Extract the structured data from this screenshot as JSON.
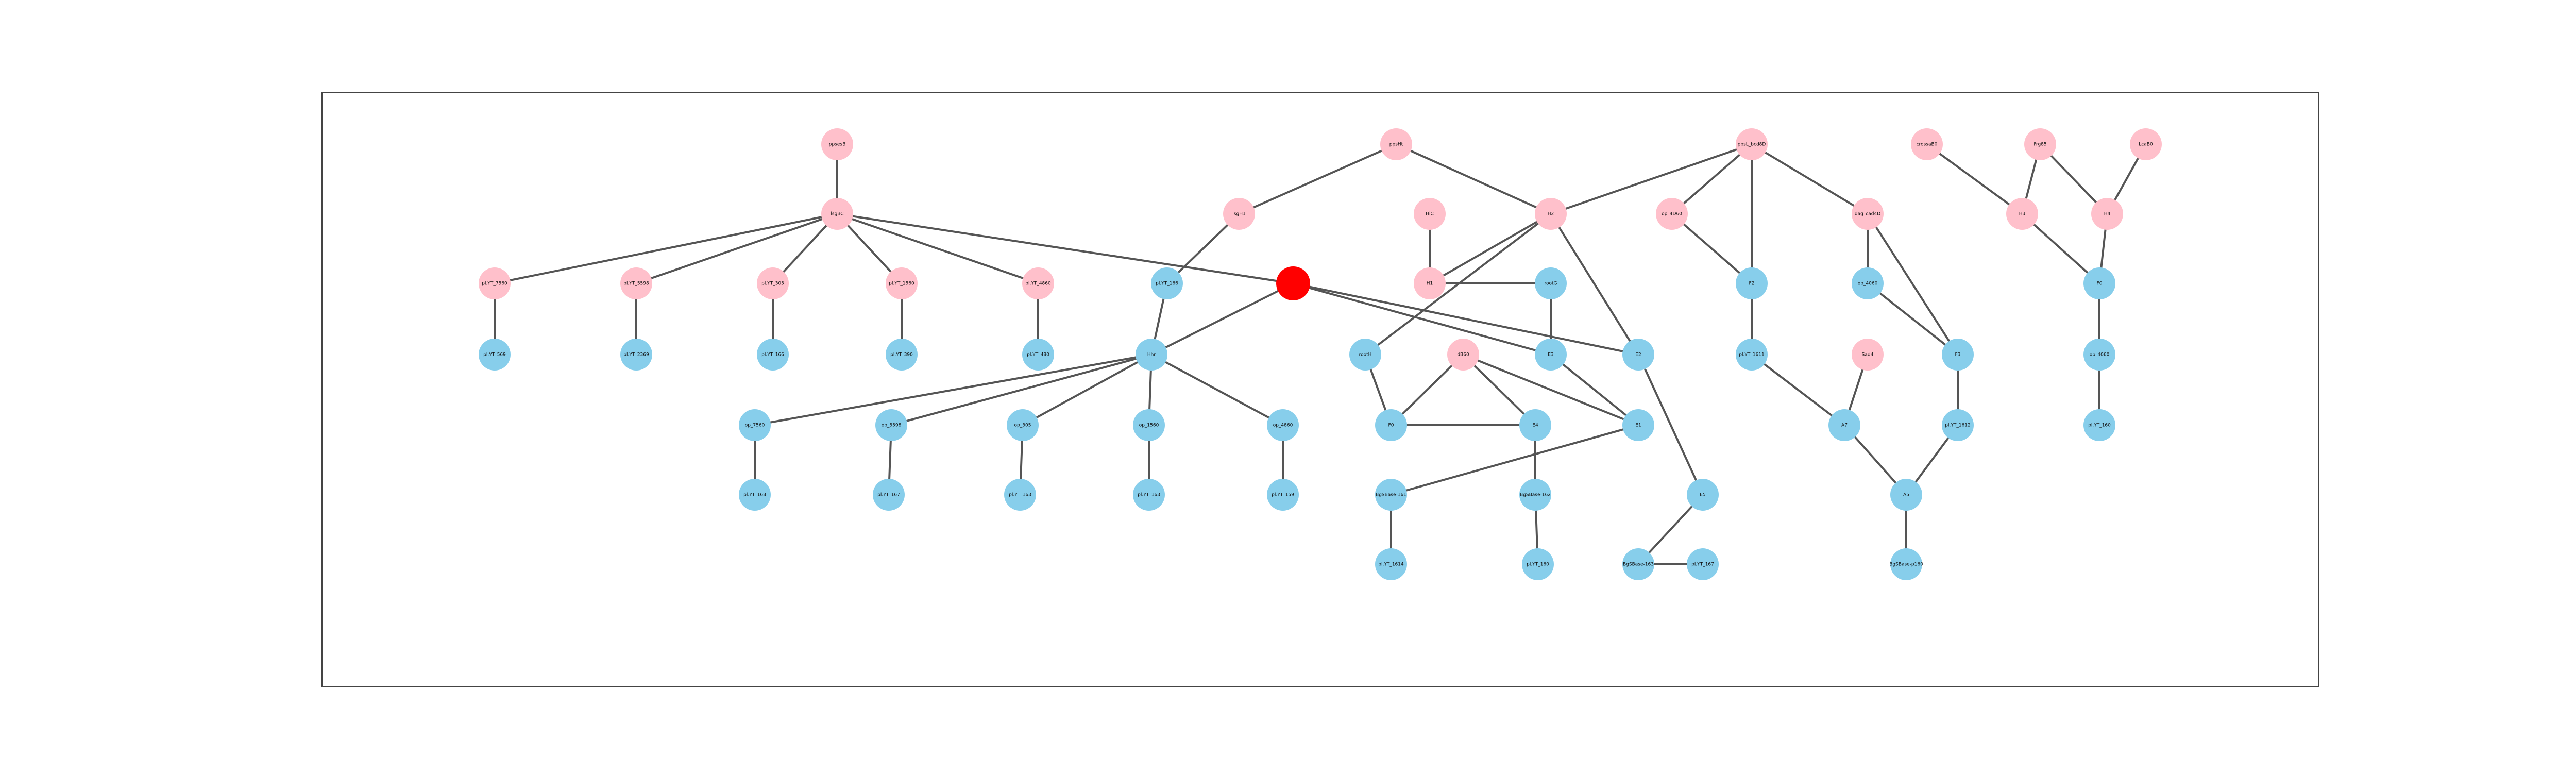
{
  "colors": {
    "pink": "#FFC0CB",
    "blue": "#87CEEB",
    "red": "#FF0000",
    "edge": "#555555"
  },
  "nodes": [
    {
      "id": "n01",
      "label": "ppsesB",
      "color": "pink"
    },
    {
      "id": "n02",
      "label": "lsgBC",
      "color": "pink"
    },
    {
      "id": "n03",
      "label": "pl.YT_7560",
      "color": "pink"
    },
    {
      "id": "n04",
      "label": "pl.YT_5598",
      "color": "pink"
    },
    {
      "id": "n05",
      "label": "pl.YT_305",
      "color": "pink"
    },
    {
      "id": "n06",
      "label": "pl.YT_1560",
      "color": "pink"
    },
    {
      "id": "n07",
      "label": "pl.YT_4860",
      "color": "pink"
    },
    {
      "id": "n08",
      "label": "pl.YT_569",
      "color": "blue"
    },
    {
      "id": "n09",
      "label": "pl.YT_2369",
      "color": "blue"
    },
    {
      "id": "n10",
      "label": "pl.YT_166",
      "color": "blue"
    },
    {
      "id": "n11",
      "label": "pl.YT_390",
      "color": "blue"
    },
    {
      "id": "n12",
      "label": "pl.YT_480",
      "color": "blue"
    },
    {
      "id": "n13",
      "label": "ppsHt",
      "color": "pink"
    },
    {
      "id": "n14",
      "label": "lsgH1",
      "color": "pink"
    },
    {
      "id": "n15",
      "label": "pl.YT_166",
      "color": "blue"
    },
    {
      "id": "n16",
      "label": "",
      "color": "red"
    },
    {
      "id": "n17",
      "label": "Hhr",
      "color": "blue"
    },
    {
      "id": "n18",
      "label": "op_7560",
      "color": "blue"
    },
    {
      "id": "n19",
      "label": "op_5598",
      "color": "blue"
    },
    {
      "id": "n20",
      "label": "op_305",
      "color": "blue"
    },
    {
      "id": "n21",
      "label": "op_1560",
      "color": "blue"
    },
    {
      "id": "n22",
      "label": "op_4860",
      "color": "blue"
    },
    {
      "id": "n23",
      "label": "pl.YT_168",
      "color": "blue"
    },
    {
      "id": "n24",
      "label": "pl.YT_167",
      "color": "blue"
    },
    {
      "id": "n25",
      "label": "pl.YT_163",
      "color": "blue"
    },
    {
      "id": "n26",
      "label": "pl.YT_163",
      "color": "blue"
    },
    {
      "id": "n27",
      "label": "pl.YT_159",
      "color": "blue"
    },
    {
      "id": "n28",
      "label": "HiC",
      "color": "pink"
    },
    {
      "id": "n29",
      "label": "H1",
      "color": "pink"
    },
    {
      "id": "n30",
      "label": "H2",
      "color": "pink"
    },
    {
      "id": "n31",
      "label": "rootG",
      "color": "blue"
    },
    {
      "id": "n32",
      "label": "rootH",
      "color": "blue"
    },
    {
      "id": "n33",
      "label": "dB60",
      "color": "pink"
    },
    {
      "id": "n34",
      "label": "E3",
      "color": "blue"
    },
    {
      "id": "n35",
      "label": "F0",
      "color": "blue"
    },
    {
      "id": "n36",
      "label": "E4",
      "color": "blue"
    },
    {
      "id": "n37",
      "label": "E1",
      "color": "blue"
    },
    {
      "id": "n38",
      "label": "E2",
      "color": "blue"
    },
    {
      "id": "n39",
      "label": "E5",
      "color": "blue"
    },
    {
      "id": "n40",
      "label": "BgSBase-161",
      "color": "blue"
    },
    {
      "id": "n41",
      "label": "pl.YT_1614",
      "color": "blue"
    },
    {
      "id": "n42",
      "label": "BgSBase-162",
      "color": "blue"
    },
    {
      "id": "n43",
      "label": "pl.YT_160",
      "color": "blue"
    },
    {
      "id": "n44",
      "label": "BgSBase-163",
      "color": "blue"
    },
    {
      "id": "n45",
      "label": "pl.YT_167",
      "color": "blue"
    },
    {
      "id": "n46",
      "label": "ppsL_bcd8D",
      "color": "pink"
    },
    {
      "id": "n47",
      "label": "op_4D60",
      "color": "pink"
    },
    {
      "id": "n48",
      "label": "dag_cad4D",
      "color": "pink"
    },
    {
      "id": "n49",
      "label": "F2",
      "color": "blue"
    },
    {
      "id": "n50",
      "label": "op_4060",
      "color": "blue"
    },
    {
      "id": "n51",
      "label": "pl.YT_1611",
      "color": "blue"
    },
    {
      "id": "n52",
      "label": "F3",
      "color": "blue"
    },
    {
      "id": "n53",
      "label": "Sad4",
      "color": "pink"
    },
    {
      "id": "n54",
      "label": "A7",
      "color": "blue"
    },
    {
      "id": "n55",
      "label": "pl.YT_1612",
      "color": "blue"
    },
    {
      "id": "n56",
      "label": "A5",
      "color": "blue"
    },
    {
      "id": "n57",
      "label": "BgSBase-p160",
      "color": "blue"
    },
    {
      "id": "n58",
      "label": "crossaB0",
      "color": "pink"
    },
    {
      "id": "n59",
      "label": "Frg85",
      "color": "pink"
    },
    {
      "id": "n60",
      "label": "LcaB0",
      "color": "pink"
    },
    {
      "id": "n61",
      "label": "H3",
      "color": "pink"
    },
    {
      "id": "n62",
      "label": "H4",
      "color": "pink"
    },
    {
      "id": "n63",
      "label": "F0",
      "color": "blue"
    },
    {
      "id": "n64",
      "label": "op_4060",
      "color": "blue"
    },
    {
      "id": "n65",
      "label": "pl.YT_160",
      "color": "blue"
    }
  ],
  "edges": [
    [
      "n01",
      "n02"
    ],
    [
      "n02",
      "n03"
    ],
    [
      "n02",
      "n04"
    ],
    [
      "n02",
      "n05"
    ],
    [
      "n02",
      "n06"
    ],
    [
      "n02",
      "n07"
    ],
    [
      "n02",
      "n16"
    ],
    [
      "n03",
      "n08"
    ],
    [
      "n04",
      "n09"
    ],
    [
      "n05",
      "n10"
    ],
    [
      "n06",
      "n11"
    ],
    [
      "n07",
      "n12"
    ],
    [
      "n13",
      "n14"
    ],
    [
      "n13",
      "n30"
    ],
    [
      "n14",
      "n15"
    ],
    [
      "n15",
      "n17"
    ],
    [
      "n16",
      "n17"
    ],
    [
      "n16",
      "n34"
    ],
    [
      "n16",
      "n38"
    ],
    [
      "n17",
      "n18"
    ],
    [
      "n17",
      "n19"
    ],
    [
      "n17",
      "n20"
    ],
    [
      "n17",
      "n21"
    ],
    [
      "n17",
      "n22"
    ],
    [
      "n18",
      "n23"
    ],
    [
      "n19",
      "n24"
    ],
    [
      "n20",
      "n25"
    ],
    [
      "n21",
      "n26"
    ],
    [
      "n22",
      "n27"
    ],
    [
      "n28",
      "n29"
    ],
    [
      "n29",
      "n30"
    ],
    [
      "n29",
      "n31"
    ],
    [
      "n30",
      "n32"
    ],
    [
      "n30",
      "n38"
    ],
    [
      "n31",
      "n34"
    ],
    [
      "n32",
      "n35"
    ],
    [
      "n33",
      "n35"
    ],
    [
      "n33",
      "n36"
    ],
    [
      "n33",
      "n37"
    ],
    [
      "n35",
      "n36"
    ],
    [
      "n34",
      "n37"
    ],
    [
      "n38",
      "n39"
    ],
    [
      "n37",
      "n40"
    ],
    [
      "n40",
      "n41"
    ],
    [
      "n36",
      "n42"
    ],
    [
      "n42",
      "n43"
    ],
    [
      "n39",
      "n44"
    ],
    [
      "n44",
      "n45"
    ],
    [
      "n46",
      "n30"
    ],
    [
      "n46",
      "n47"
    ],
    [
      "n46",
      "n48"
    ],
    [
      "n46",
      "n49"
    ],
    [
      "n47",
      "n49"
    ],
    [
      "n48",
      "n50"
    ],
    [
      "n48",
      "n52"
    ],
    [
      "n49",
      "n51"
    ],
    [
      "n50",
      "n52"
    ],
    [
      "n51",
      "n54"
    ],
    [
      "n53",
      "n54"
    ],
    [
      "n52",
      "n55"
    ],
    [
      "n54",
      "n56"
    ],
    [
      "n55",
      "n56"
    ],
    [
      "n56",
      "n57"
    ],
    [
      "n59",
      "n61"
    ],
    [
      "n59",
      "n62"
    ],
    [
      "n60",
      "n62"
    ],
    [
      "n58",
      "n61"
    ],
    [
      "n61",
      "n63"
    ],
    [
      "n62",
      "n63"
    ],
    [
      "n63",
      "n64"
    ],
    [
      "n64",
      "n65"
    ]
  ]
}
